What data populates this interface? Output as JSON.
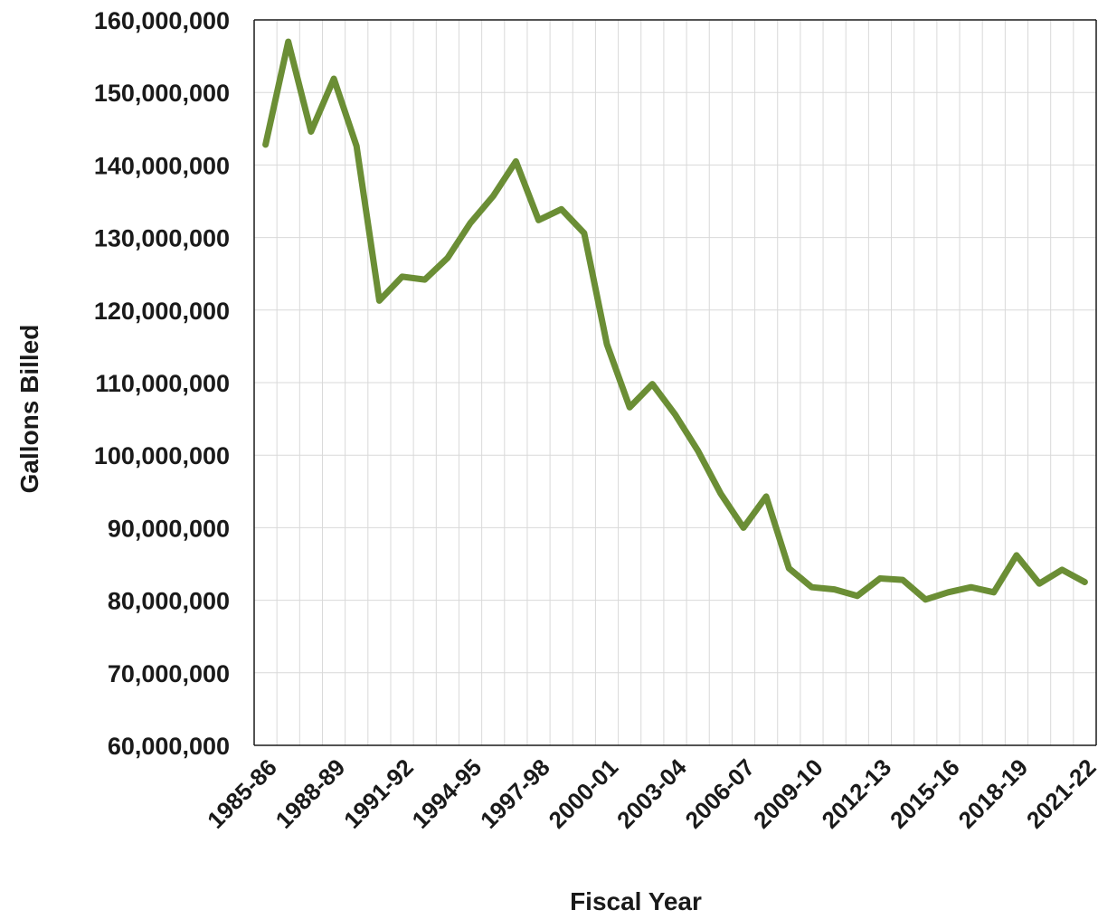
{
  "chart_data": {
    "type": "line",
    "title": "",
    "xlabel": "Fiscal Year",
    "ylabel": "Gallons Billed",
    "ylim": [
      60000000,
      160000000
    ],
    "y_ticks": [
      60000000,
      70000000,
      80000000,
      90000000,
      100000000,
      110000000,
      120000000,
      130000000,
      140000000,
      150000000,
      160000000
    ],
    "y_tick_labels": [
      "60,000,000",
      "70,000,000",
      "80,000,000",
      "90,000,000",
      "100,000,000",
      "110,000,000",
      "120,000,000",
      "130,000,000",
      "140,000,000",
      "150,000,000",
      "160,000,000"
    ],
    "x_tick_labels": [
      "1985-86",
      "1988-89",
      "1991-92",
      "1994-95",
      "1997-98",
      "2000-01",
      "2003-04",
      "2006-07",
      "2009-10",
      "2012-13",
      "2015-16",
      "2018-19",
      "2021-22"
    ],
    "grid": true,
    "legend": "none",
    "x": [
      "1985-86",
      "1986-87",
      "1987-88",
      "1988-89",
      "1989-90",
      "1990-91",
      "1991-92",
      "1992-93",
      "1993-94",
      "1994-95",
      "1995-96",
      "1996-97",
      "1997-98",
      "1998-99",
      "1999-00",
      "2000-01",
      "2001-02",
      "2002-03",
      "2003-04",
      "2004-05",
      "2005-06",
      "2006-07",
      "2007-08",
      "2008-09",
      "2009-10",
      "2010-11",
      "2011-12",
      "2012-13",
      "2013-14",
      "2014-15",
      "2015-16",
      "2016-17",
      "2017-18",
      "2018-19",
      "2019-20",
      "2020-21",
      "2021-22"
    ],
    "series": [
      {
        "values": [
          142800000,
          157000000,
          144600000,
          151900000,
          142600000,
          121300000,
          124600000,
          124200000,
          127200000,
          132000000,
          135700000,
          140500000,
          132400000,
          133900000,
          130600000,
          115300000,
          106600000,
          109800000,
          105600000,
          100600000,
          94700000,
          90000000,
          94300000,
          84400000,
          81800000,
          81500000,
          80600000,
          83000000,
          82800000,
          80100000,
          81100000,
          81800000,
          81100000,
          86200000,
          82300000,
          84200000,
          82500000
        ],
        "color": "#6b8e35"
      }
    ]
  }
}
